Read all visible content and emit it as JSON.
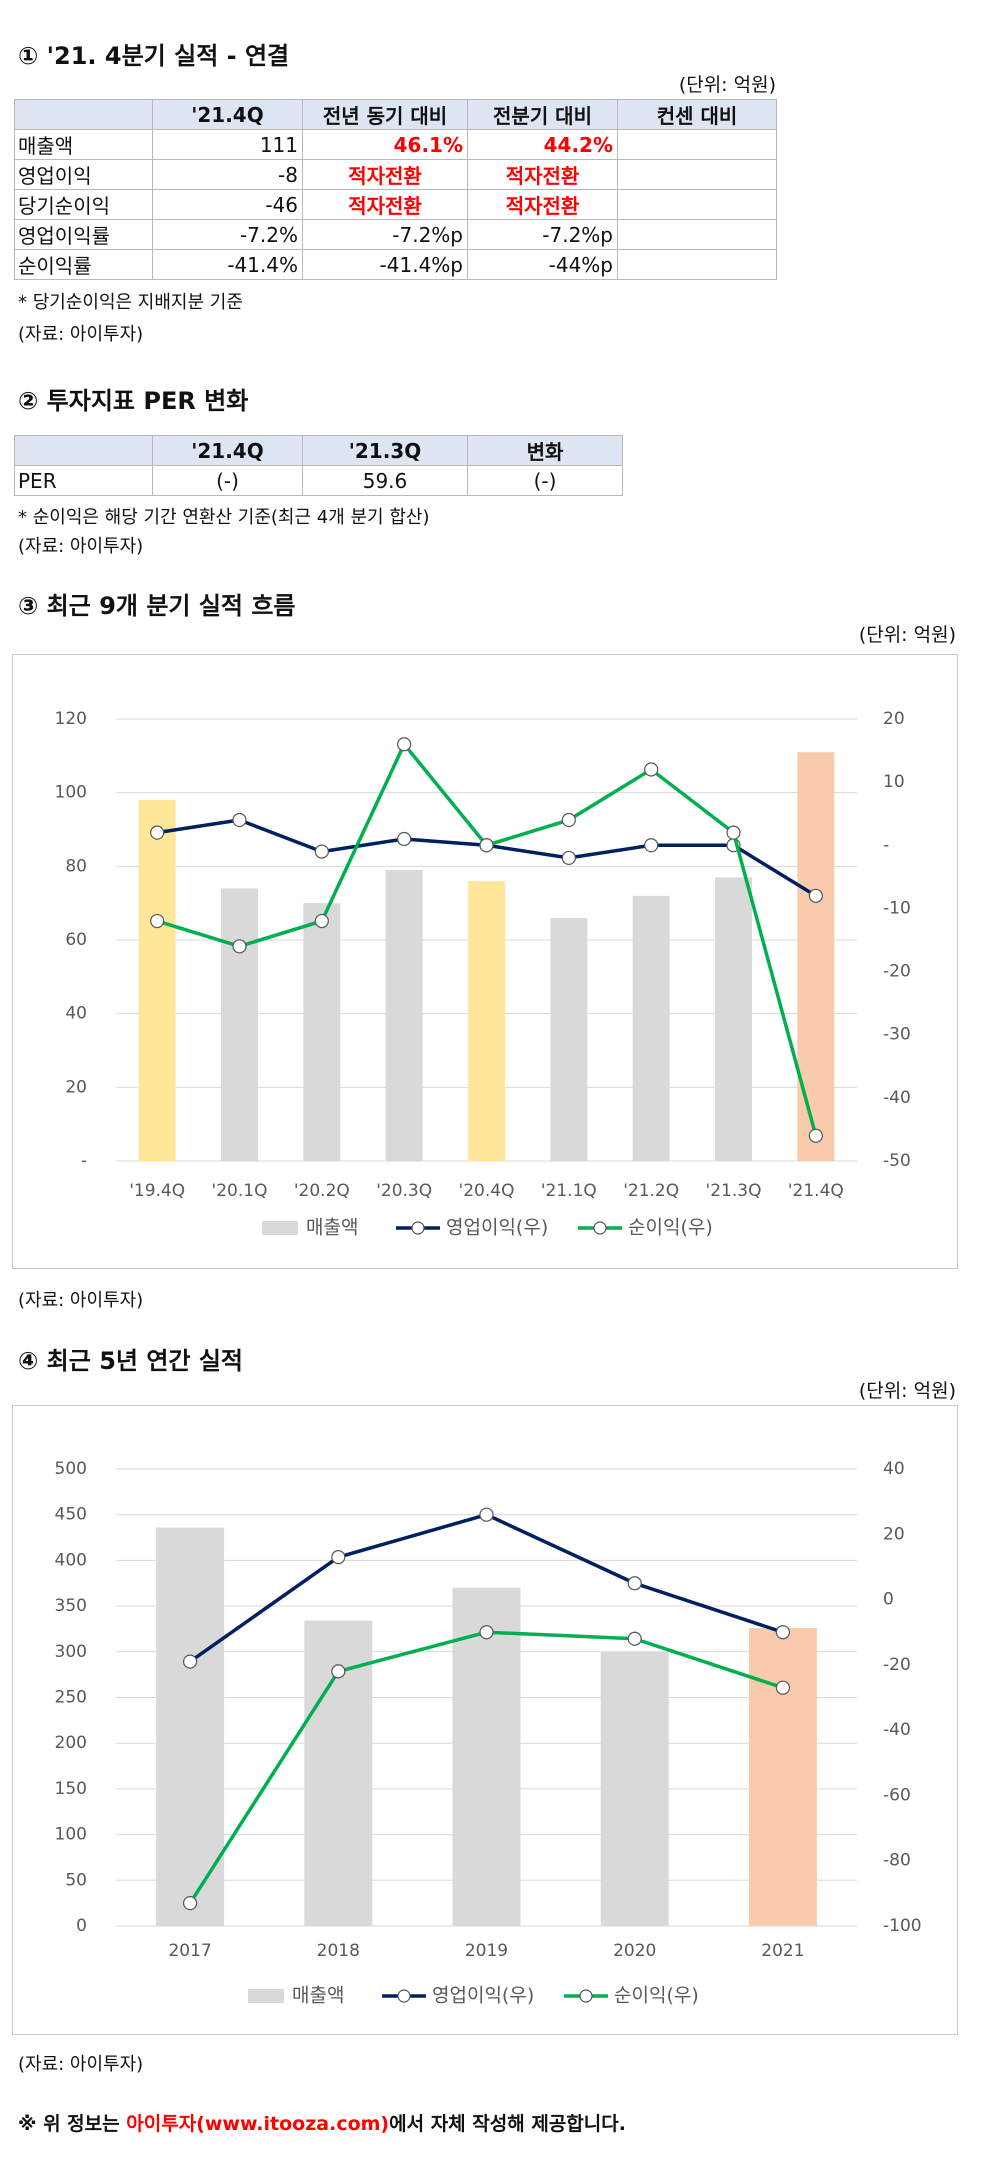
{
  "section1": {
    "title": "① '21. 4분기 실적 - 연결",
    "unit": "(단위: 억원)",
    "headers": [
      "",
      "'21.4Q",
      "전년 동기 대비",
      "전분기 대비",
      "컨센 대비"
    ],
    "rows": [
      {
        "label": "매출액",
        "value": "111",
        "yoy": "46.1%",
        "qoq": "44.2%",
        "cons": ""
      },
      {
        "label": "영업이익",
        "value": "-8",
        "yoy": "적자전환",
        "qoq": "적자전환",
        "cons": ""
      },
      {
        "label": "당기순이익",
        "value": "-46",
        "yoy": "적자전환",
        "qoq": "적자전환",
        "cons": ""
      },
      {
        "label": "영업이익률",
        "value": "-7.2%",
        "yoy": "-7.2%p",
        "qoq": "-7.2%p",
        "cons": ""
      },
      {
        "label": "순이익률",
        "value": "-41.4%",
        "yoy": "-41.4%p",
        "qoq": "-44%p",
        "cons": ""
      }
    ],
    "note": "* 당기순이익은 지배지분 기준",
    "source": "(자료: 아이투자)"
  },
  "section2": {
    "title": "② 투자지표 PER 변화",
    "headers": [
      "",
      "'21.4Q",
      "'21.3Q",
      "변화"
    ],
    "row": {
      "label": "PER",
      "cur": "(-)",
      "prev": "59.6",
      "change": "(-)"
    },
    "note": "* 순이익은 해당 기간 연환산 기준(최근 4개 분기 합산)",
    "source": "(자료: 아이투자)"
  },
  "section3": {
    "title": "③ 최근 9개 분기 실적 흐름",
    "unit": "(단위: 억원)",
    "source": "(자료: 아이투자)"
  },
  "section4": {
    "title": "④ 최근 5년 연간 실적",
    "unit": "(단위: 억원)",
    "source": "(자료: 아이투자)"
  },
  "footer": {
    "prefix": "※ 위 정보는 ",
    "link": "아이투자(www.itooza.com)",
    "suffix": "에서 자체 작성해 제공합니다."
  },
  "colors": {
    "bar_gray": "#d9d9d9",
    "bar_yellow": "#ffe699",
    "bar_peach": "#f8cbad",
    "op_line": "#002060",
    "net_line": "#00b050",
    "header_fill": "#dde5f3",
    "highlight_red": "#ff0000"
  },
  "chart_data": [
    {
      "type": "bar",
      "categories": [
        "'19.4Q",
        "'20.1Q",
        "'20.2Q",
        "'20.3Q",
        "'20.4Q",
        "'21.1Q",
        "'21.2Q",
        "'21.3Q",
        "'21.4Q"
      ],
      "series": [
        {
          "name": "매출액",
          "axis": "left",
          "kind": "bar",
          "values": [
            98,
            74,
            70,
            79,
            76,
            66,
            72,
            77,
            111
          ]
        },
        {
          "name": "영업이익(우)",
          "axis": "right",
          "kind": "line",
          "values": [
            2,
            4,
            -1,
            1,
            0,
            -2,
            0,
            0,
            -8
          ]
        },
        {
          "name": "순이익(우)",
          "axis": "right",
          "kind": "line",
          "values": [
            -12,
            -16,
            -12,
            16,
            0,
            4,
            12,
            2,
            -46
          ]
        }
      ],
      "bar_highlight": [
        "yellow",
        "gray",
        "gray",
        "gray",
        "yellow",
        "gray",
        "gray",
        "gray",
        "peach"
      ],
      "ylim": [
        0,
        120
      ],
      "yticks_left": [
        "-",
        "20",
        "40",
        "60",
        "80",
        "100",
        "120"
      ],
      "y2lim": [
        -50,
        20
      ],
      "yticks_right": [
        "-50",
        "-40",
        "-30",
        "-20",
        "-10",
        "-",
        "10",
        "20"
      ],
      "legend": "bottom",
      "grid": true
    },
    {
      "type": "bar",
      "categories": [
        "2017",
        "2018",
        "2019",
        "2020",
        "2021"
      ],
      "series": [
        {
          "name": "매출액",
          "axis": "left",
          "kind": "bar",
          "values": [
            436,
            334,
            370,
            300,
            326
          ]
        },
        {
          "name": "영업이익(우)",
          "axis": "right",
          "kind": "line",
          "values": [
            -19,
            13,
            26,
            5,
            -10
          ]
        },
        {
          "name": "순이익(우)",
          "axis": "right",
          "kind": "line",
          "values": [
            -93,
            -22,
            -10,
            -12,
            -27
          ]
        }
      ],
      "bar_highlight": [
        "gray",
        "gray",
        "gray",
        "gray",
        "peach"
      ],
      "ylim": [
        0,
        500
      ],
      "yticks_left": [
        "0",
        "50",
        "100",
        "150",
        "200",
        "250",
        "300",
        "350",
        "400",
        "450",
        "500"
      ],
      "y2lim": [
        -100,
        40
      ],
      "yticks_right": [
        "-100",
        "-80",
        "-60",
        "-40",
        "-20",
        "0",
        "20",
        "40"
      ],
      "legend": "bottom",
      "grid": true
    }
  ]
}
